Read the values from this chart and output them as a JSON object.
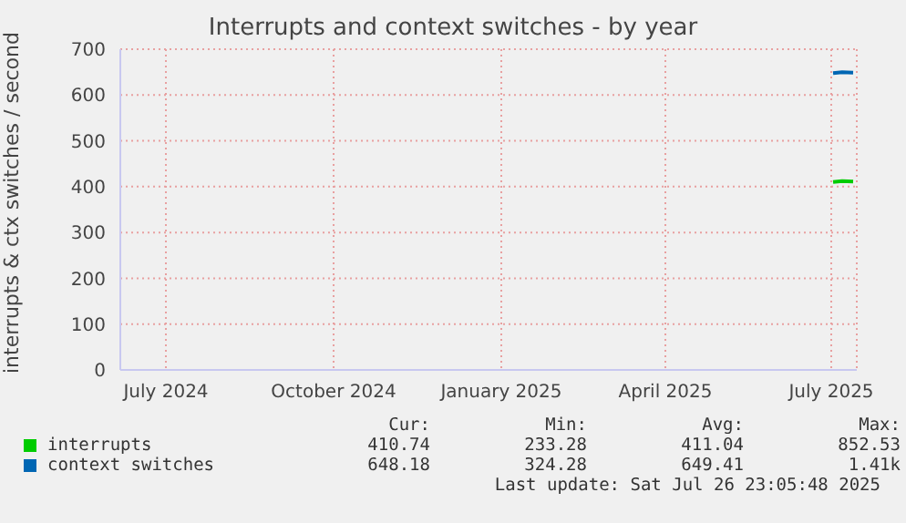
{
  "chart_data": {
    "type": "line",
    "title": "Interrupts and context switches - by year",
    "ylabel": "interrupts & ctx switches / second",
    "xlim": [
      "2024-06-06",
      "2025-07-15"
    ],
    "xticks": [
      {
        "value": "2024-07-01",
        "label": "July 2024"
      },
      {
        "value": "2024-10-01",
        "label": "October 2024"
      },
      {
        "value": "2025-01-01",
        "label": "January 2025"
      },
      {
        "value": "2025-04-01",
        "label": "April 2025"
      },
      {
        "value": "2025-07-01",
        "label": "July 2025"
      }
    ],
    "ylim": [
      0,
      700
    ],
    "yticks": [
      0,
      100,
      200,
      300,
      400,
      500,
      600,
      700
    ],
    "grid": true,
    "legend": "bottom",
    "marker": "none",
    "series": [
      {
        "name": "interrupts",
        "color": "#00cc00",
        "x": [
          "2025-07-02",
          "2025-07-07",
          "2025-07-13"
        ],
        "values": [
          410,
          412,
          411
        ]
      },
      {
        "name": "context switches",
        "color": "#0066b3",
        "x": [
          "2025-07-02",
          "2025-07-07",
          "2025-07-13"
        ],
        "values": [
          648,
          650,
          649
        ]
      }
    ],
    "annotations": [
      "Cur:",
      "Min:",
      "Avg:",
      "Max:",
      "410.74",
      "233.28",
      "411.04",
      "852.53",
      "648.18",
      "324.28",
      "649.41",
      "1.41k",
      "Last update: Sat Jul 26 23:05:48 2025"
    ]
  }
}
